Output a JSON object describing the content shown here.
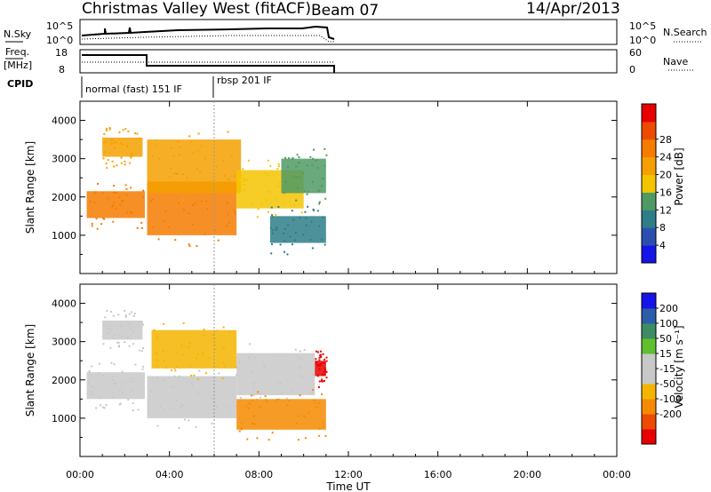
{
  "header": {
    "station": "Christmas Valley West (fitACF)",
    "beam": "Beam 07",
    "date": "14/Apr/2013"
  },
  "aux_labels": {
    "nsky": "N.Sky",
    "nsearch": "N.Search",
    "freq": "Freq.",
    "freq_unit": "[MHz]",
    "nave": "Nave",
    "cpid": "CPID",
    "nsky_ticks": [
      "10^5",
      "10^0"
    ],
    "freq_ticks": [
      "18",
      "8"
    ],
    "nave_ticks": [
      "60",
      "0"
    ],
    "cpid_mode1": "normal (fast) 151 IF",
    "cpid_mode2": "rbsp 201 IF"
  },
  "colors": {
    "power_scale": [
      "#1515e8",
      "#2b4fb0",
      "#2e7e8a",
      "#4f9a64",
      "#f5c400",
      "#f5a000",
      "#f57c00",
      "#ee4a00",
      "#e80000"
    ],
    "velocity_scale": [
      "#e80000",
      "#ee4a00",
      "#f58a00",
      "#f5b400",
      "#c8c8c8",
      "#c8c8c8",
      "#5fbf2f",
      "#3e8c62",
      "#2b5da8",
      "#1515e8"
    ]
  },
  "chart_data": [
    {
      "type": "heatmap",
      "ylabel": "Slant Range [km]",
      "colorbar_label": "Power [dB]",
      "colorbar_ticks": [
        "28",
        "24",
        "20",
        "16",
        "12",
        "8",
        "4"
      ],
      "yticks": [
        "4000",
        "3000",
        "2000",
        "1000"
      ],
      "ylim": [
        0,
        4500
      ],
      "xlim_hours": [
        0,
        24
      ],
      "bands": [
        {
          "t0": 0.3,
          "t1": 2.9,
          "r0": 1450,
          "r1": 2150,
          "value": 28
        },
        {
          "t0": 1.0,
          "t1": 2.8,
          "r0": 3050,
          "r1": 3550,
          "value": 24
        },
        {
          "t0": 3.0,
          "t1": 7.0,
          "r0": 1000,
          "r1": 2400,
          "value": 28
        },
        {
          "t0": 3.0,
          "t1": 7.2,
          "r0": 2100,
          "r1": 3500,
          "value": 26
        },
        {
          "t0": 7.0,
          "t1": 10.0,
          "r0": 1700,
          "r1": 2700,
          "value": 20
        },
        {
          "t0": 8.5,
          "t1": 11.0,
          "r0": 800,
          "r1": 1500,
          "value": 14
        },
        {
          "t0": 9.0,
          "t1": 11.0,
          "r0": 2100,
          "r1": 3000,
          "value": 18
        }
      ]
    },
    {
      "type": "heatmap",
      "ylabel": "Slant Range [km]",
      "colorbar_label": "Velocity [m s⁻¹]",
      "colorbar_ticks": [
        "200",
        "100",
        "50",
        "15",
        "-15",
        "-50",
        "-100",
        "-200"
      ],
      "yticks": [
        "4000",
        "3000",
        "2000",
        "1000"
      ],
      "ylim": [
        0,
        4500
      ],
      "xlim_hours": [
        0,
        24
      ],
      "bands": [
        {
          "t0": 0.3,
          "t1": 2.9,
          "r0": 1500,
          "r1": 2200,
          "value": 0
        },
        {
          "t0": 1.0,
          "t1": 2.8,
          "r0": 3050,
          "r1": 3550,
          "value": 0
        },
        {
          "t0": 3.0,
          "t1": 7.0,
          "r0": 1000,
          "r1": 2100,
          "value": 0
        },
        {
          "t0": 3.2,
          "t1": 7.0,
          "r0": 2300,
          "r1": 3300,
          "value": -30
        },
        {
          "t0": 7.0,
          "t1": 10.5,
          "r0": 1600,
          "r1": 2700,
          "value": 0
        },
        {
          "t0": 7.0,
          "t1": 11.0,
          "r0": 700,
          "r1": 1500,
          "value": -80
        },
        {
          "t0": 10.5,
          "t1": 11.0,
          "r0": 2100,
          "r1": 2500,
          "value": -200
        }
      ]
    }
  ],
  "xaxis": {
    "label": "Time UT",
    "ticks": [
      "00:00",
      "04:00",
      "08:00",
      "12:00",
      "16:00",
      "20:00",
      "00:00"
    ]
  }
}
